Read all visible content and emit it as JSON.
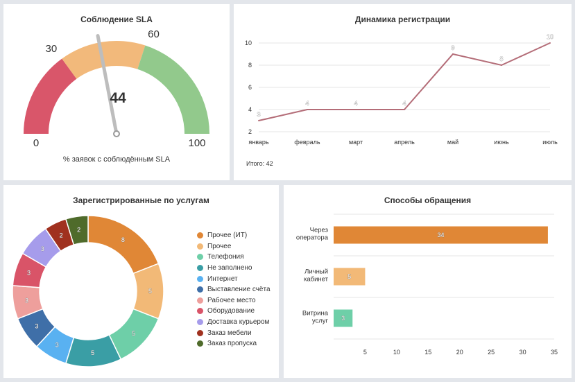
{
  "gauge": {
    "title": "Соблюдение SLA",
    "subtitle": "% заявок с соблюдённым SLA",
    "value": 44,
    "value_label": "44",
    "min": 0,
    "max": 100,
    "labels": [
      "0",
      "30",
      "60",
      "100"
    ],
    "bands": [
      {
        "from": 0,
        "to": 30,
        "color": "#d9566a"
      },
      {
        "from": 30,
        "to": 60,
        "color": "#f2b97b"
      },
      {
        "from": 60,
        "to": 100,
        "color": "#92c98c"
      }
    ]
  },
  "line_panel": {
    "title": "Динамика регистрации",
    "total": "Итого: 42"
  },
  "donut_panel": {
    "title": "Зарегистрированные по услугам"
  },
  "bar_panel": {
    "title": "Способы обращения"
  },
  "chart_data": [
    {
      "type": "line",
      "title": "Динамика регистрации",
      "categories": [
        "январь",
        "февраль",
        "март",
        "апрель",
        "май",
        "июнь",
        "июль"
      ],
      "values": [
        3,
        4,
        4,
        4,
        9,
        8,
        10
      ],
      "value_labels": [
        "3",
        "4",
        "4",
        "4",
        "9",
        "8",
        "10"
      ],
      "ylim": [
        2,
        10
      ],
      "yticks": [
        "2",
        "4",
        "6",
        "8",
        "10"
      ],
      "color": "#b46d78",
      "grid": true
    },
    {
      "type": "pie",
      "title": "Зарегистрированные по услугам",
      "categories": [
        "Прочее (ИТ)",
        "Прочее",
        "Телефония",
        "Не заполнено",
        "Интернет",
        "Выставление счёта",
        "Рабочее место",
        "Оборудование",
        "Доставка курьером",
        "Заказ мебели",
        "Заказ пропуска"
      ],
      "values": [
        8,
        5,
        5,
        5,
        3,
        3,
        3,
        3,
        3,
        2,
        2
      ],
      "value_labels": [
        "8",
        "5",
        "5",
        "5",
        "3",
        "3",
        "3",
        "3",
        "3",
        "2",
        "2"
      ],
      "colors": [
        "#e08736",
        "#f2b977",
        "#6ecfa8",
        "#3a9ea5",
        "#59b1f1",
        "#3f6fa8",
        "#ee9f9c",
        "#d95468",
        "#a69ceb",
        "#a0311f",
        "#4f6b2b"
      ],
      "legend": "right"
    },
    {
      "type": "bar",
      "orientation": "horizontal",
      "title": "Способы обращения",
      "categories": [
        [
          "Через",
          "оператора"
        ],
        [
          "Личный",
          "кабинет"
        ],
        [
          "Витрина",
          "услуг"
        ]
      ],
      "values": [
        34,
        5,
        3
      ],
      "value_labels": [
        "34",
        "5",
        "3"
      ],
      "colors": [
        "#e08736",
        "#f2b977",
        "#6ecfa8"
      ],
      "xlim": [
        0,
        35
      ],
      "xticks": [
        "5",
        "10",
        "15",
        "20",
        "25",
        "30",
        "35"
      ],
      "grid": true
    }
  ]
}
